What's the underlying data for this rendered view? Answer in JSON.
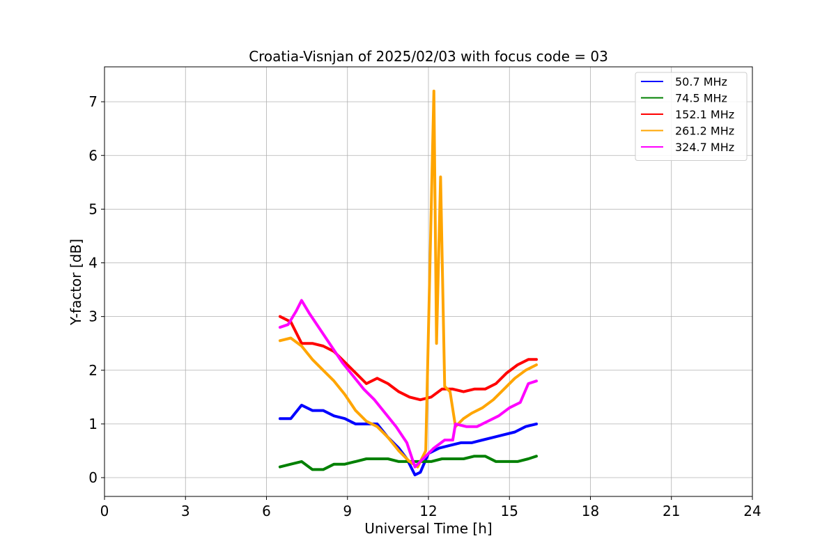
{
  "chart_data": {
    "type": "line",
    "title": "Croatia-Visnjan of 2025/02/03 with focus code = 03",
    "xlabel": "Universal Time [h]",
    "ylabel": "Y-factor [dB]",
    "xlim": [
      0,
      24
    ],
    "ylim": [
      -0.35,
      7.65
    ],
    "xticks": [
      0,
      3,
      6,
      9,
      12,
      15,
      18,
      21,
      24
    ],
    "yticks": [
      0,
      1,
      2,
      3,
      4,
      5,
      6,
      7
    ],
    "grid": true,
    "legend_position": "top-right",
    "series": [
      {
        "name": " 50.7 MHz",
        "color": "#0000ff",
        "x": [
          6.5,
          6.9,
          7.3,
          7.7,
          8.1,
          8.5,
          8.9,
          9.3,
          9.7,
          10.1,
          10.5,
          10.9,
          11.2,
          11.5,
          11.7,
          12.0,
          12.4,
          12.8,
          13.2,
          13.6,
          14.0,
          14.4,
          14.8,
          15.2,
          15.6,
          16.0
        ],
        "y": [
          1.1,
          1.1,
          1.35,
          1.25,
          1.25,
          1.15,
          1.1,
          1.0,
          1.0,
          1.0,
          0.75,
          0.55,
          0.35,
          0.05,
          0.1,
          0.45,
          0.55,
          0.6,
          0.65,
          0.65,
          0.7,
          0.75,
          0.8,
          0.85,
          0.95,
          1.0
        ]
      },
      {
        "name": " 74.5 MHz",
        "color": "#008000",
        "x": [
          6.5,
          6.9,
          7.3,
          7.7,
          8.1,
          8.5,
          8.9,
          9.3,
          9.7,
          10.1,
          10.5,
          10.9,
          11.3,
          11.7,
          12.1,
          12.5,
          12.9,
          13.3,
          13.7,
          14.1,
          14.5,
          14.9,
          15.3,
          15.7,
          16.0
        ],
        "y": [
          0.2,
          0.25,
          0.3,
          0.15,
          0.15,
          0.25,
          0.25,
          0.3,
          0.35,
          0.35,
          0.35,
          0.3,
          0.3,
          0.3,
          0.3,
          0.35,
          0.35,
          0.35,
          0.4,
          0.4,
          0.3,
          0.3,
          0.3,
          0.35,
          0.4
        ]
      },
      {
        "name": " 152.1 MHz",
        "color": "#ff0000",
        "x": [
          6.5,
          6.9,
          7.3,
          7.7,
          8.1,
          8.5,
          8.9,
          9.3,
          9.7,
          10.1,
          10.5,
          10.9,
          11.3,
          11.7,
          12.1,
          12.5,
          12.9,
          13.3,
          13.7,
          14.1,
          14.5,
          14.9,
          15.3,
          15.7,
          16.0
        ],
        "y": [
          3.0,
          2.9,
          2.5,
          2.5,
          2.45,
          2.35,
          2.15,
          1.95,
          1.75,
          1.85,
          1.75,
          1.6,
          1.5,
          1.45,
          1.5,
          1.65,
          1.65,
          1.6,
          1.65,
          1.65,
          1.75,
          1.95,
          2.1,
          2.2,
          2.2
        ]
      },
      {
        "name": " 261.2 MHz",
        "color": "#ffa500",
        "x": [
          6.5,
          6.9,
          7.3,
          7.7,
          8.1,
          8.5,
          8.9,
          9.3,
          9.7,
          10.1,
          10.5,
          10.9,
          11.3,
          11.6,
          11.9,
          12.2,
          12.3,
          12.45,
          12.6,
          12.8,
          13.0,
          13.3,
          13.6,
          14.0,
          14.4,
          14.8,
          15.2,
          15.6,
          16.0
        ],
        "y": [
          2.55,
          2.6,
          2.45,
          2.2,
          2.0,
          1.8,
          1.55,
          1.25,
          1.05,
          0.95,
          0.75,
          0.5,
          0.3,
          0.2,
          0.5,
          7.2,
          2.5,
          5.6,
          1.7,
          1.6,
          0.95,
          1.1,
          1.2,
          1.3,
          1.45,
          1.65,
          1.85,
          2.0,
          2.1
        ]
      },
      {
        "name": " 324.7 MHz",
        "color": "#ff00ff",
        "x": [
          6.5,
          6.8,
          7.1,
          7.3,
          7.6,
          8.0,
          8.4,
          8.8,
          9.2,
          9.6,
          10.0,
          10.4,
          10.8,
          11.2,
          11.5,
          11.8,
          12.2,
          12.6,
          12.9,
          13.0,
          13.4,
          13.8,
          14.2,
          14.6,
          15.0,
          15.4,
          15.7,
          16.0
        ],
        "y": [
          2.8,
          2.85,
          3.1,
          3.3,
          3.05,
          2.75,
          2.45,
          2.15,
          1.9,
          1.65,
          1.45,
          1.2,
          0.95,
          0.65,
          0.2,
          0.35,
          0.55,
          0.7,
          0.7,
          1.0,
          0.95,
          0.95,
          1.05,
          1.15,
          1.3,
          1.4,
          1.75,
          1.8
        ]
      }
    ]
  }
}
